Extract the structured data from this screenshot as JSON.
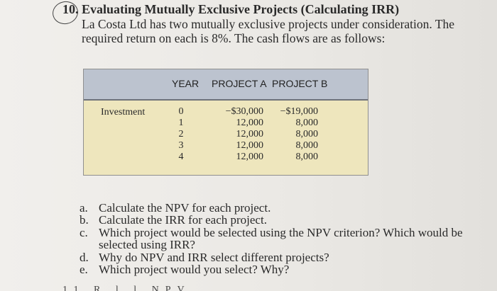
{
  "problem": {
    "number": "10.",
    "title": "Evaluating Mutually Exclusive Projects (Calculating IRR)",
    "intro_lines": [
      "La Costa Ltd has two mutually exclusive projects under consideration. The",
      "required return on each is 8%. The cash flows are as follows:"
    ]
  },
  "table": {
    "headers": {
      "year": "YEAR",
      "project_a": "PROJECT A",
      "project_b": "PROJECT B"
    },
    "row_label": "Investment",
    "years": [
      "0",
      "1",
      "2",
      "3",
      "4"
    ],
    "project_a": [
      "−$30,000",
      "12,000",
      "12,000",
      "12,000",
      "12,000"
    ],
    "project_b": [
      "−$19,000",
      "8,000",
      "8,000",
      "8,000",
      "8,000"
    ]
  },
  "questions": [
    {
      "letter": "a.",
      "text": "Calculate the NPV for each project."
    },
    {
      "letter": "b.",
      "text": "Calculate the IRR for each project."
    },
    {
      "letter": "c.",
      "text": "Which project would be selected using the NPV criterion? Which would be selected using IRR?"
    },
    {
      "letter": "d.",
      "text": "Why do NPV and IRR select different projects?"
    },
    {
      "letter": "e.",
      "text": "Which project would you select? Why?"
    }
  ],
  "cutoff_text": "11 R l l NPV"
}
